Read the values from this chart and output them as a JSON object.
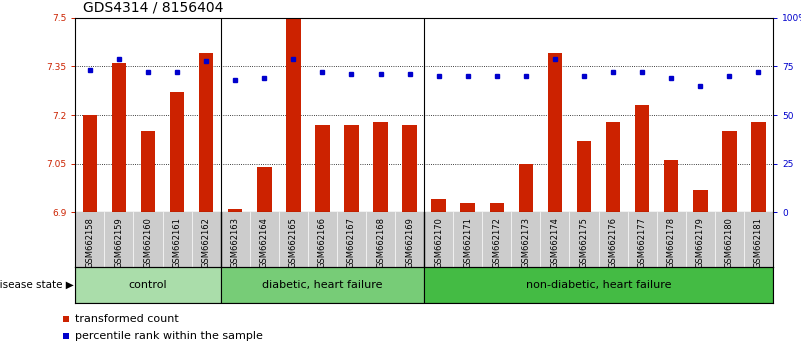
{
  "title": "GDS4314 / 8156404",
  "samples": [
    "GSM662158",
    "GSM662159",
    "GSM662160",
    "GSM662161",
    "GSM662162",
    "GSM662163",
    "GSM662164",
    "GSM662165",
    "GSM662166",
    "GSM662167",
    "GSM662168",
    "GSM662169",
    "GSM662170",
    "GSM662171",
    "GSM662172",
    "GSM662173",
    "GSM662174",
    "GSM662175",
    "GSM662176",
    "GSM662177",
    "GSM662178",
    "GSM662179",
    "GSM662180",
    "GSM662181"
  ],
  "bar_values": [
    7.2,
    7.36,
    7.15,
    7.27,
    7.39,
    6.91,
    7.04,
    7.5,
    7.17,
    7.17,
    7.18,
    7.17,
    6.94,
    6.93,
    6.93,
    7.05,
    7.39,
    7.12,
    7.18,
    7.23,
    7.06,
    6.97,
    7.15,
    7.18
  ],
  "percentile_values": [
    73,
    79,
    72,
    72,
    78,
    68,
    69,
    79,
    72,
    71,
    71,
    71,
    70,
    70,
    70,
    70,
    79,
    70,
    72,
    72,
    69,
    65,
    70,
    72
  ],
  "ylim_left": [
    6.9,
    7.5
  ],
  "ylim_right": [
    0,
    100
  ],
  "yticks_left": [
    6.9,
    7.05,
    7.2,
    7.35,
    7.5
  ],
  "yticks_right": [
    0,
    25,
    50,
    75,
    100
  ],
  "ytick_labels_left": [
    "6.9",
    "7.05",
    "7.2",
    "7.35",
    "7.5"
  ],
  "ytick_labels_right": [
    "0",
    "25",
    "50",
    "75",
    "100%"
  ],
  "group_boundaries": [
    5,
    12
  ],
  "groups": [
    {
      "label": "control",
      "start": 0,
      "end": 5,
      "color": "#aaddaa"
    },
    {
      "label": "diabetic, heart failure",
      "start": 5,
      "end": 12,
      "color": "#77cc77"
    },
    {
      "label": "non-diabetic, heart failure",
      "start": 12,
      "end": 24,
      "color": "#44bb44"
    }
  ],
  "bar_color": "#cc2200",
  "dot_color": "#0000cc",
  "sample_box_color": "#cccccc",
  "title_fontsize": 10,
  "tick_fontsize": 6.5,
  "sample_fontsize": 6,
  "label_fontsize": 8,
  "group_label_fontsize": 8,
  "disease_state_label": "disease state",
  "legend_items": [
    {
      "color": "#cc2200",
      "label": "transformed count"
    },
    {
      "color": "#0000cc",
      "label": "percentile rank within the sample"
    }
  ]
}
